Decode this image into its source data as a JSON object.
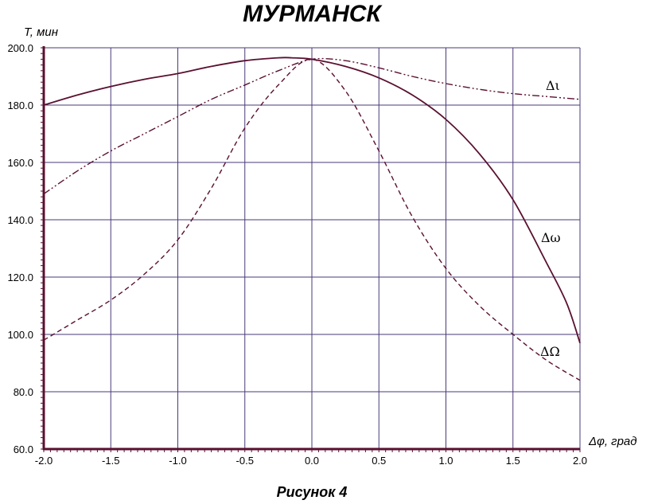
{
  "chart_data": {
    "type": "line",
    "title": "МУРМАНСК",
    "ylabel": "T, мин",
    "xlabel": "Δφ, град",
    "caption": "Рисунок  4",
    "xlim": [
      -2.0,
      2.0
    ],
    "ylim": [
      60.0,
      200.0
    ],
    "x_ticks": [
      "-2.0",
      "-1.5",
      "-1.0",
      "-0.5",
      "0.0",
      "0.5",
      "1.0",
      "1.5",
      "2.0"
    ],
    "y_ticks": [
      "60.0",
      "80.0",
      "100.0",
      "120.0",
      "140.0",
      "160.0",
      "180.0",
      "200.0"
    ],
    "grid": true,
    "colors": {
      "line": "#5a1030",
      "grid": "#4a3a78",
      "axis": "#5a1030"
    },
    "series": [
      {
        "name": "Δι",
        "style": "dash-dot-dot",
        "x": [
          -2.0,
          -1.75,
          -1.5,
          -1.25,
          -1.0,
          -0.75,
          -0.5,
          -0.25,
          0.0,
          0.25,
          0.5,
          0.75,
          1.0,
          1.25,
          1.5,
          1.75,
          2.0
        ],
        "y": [
          149,
          157,
          164,
          170,
          176,
          182,
          187,
          192,
          196,
          195.5,
          193,
          190,
          187.5,
          185.5,
          184,
          183,
          182
        ]
      },
      {
        "name": "Δω",
        "style": "solid",
        "x": [
          -2.0,
          -1.75,
          -1.5,
          -1.25,
          -1.0,
          -0.75,
          -0.5,
          -0.25,
          -0.15,
          0.0,
          0.25,
          0.5,
          0.75,
          1.0,
          1.25,
          1.5,
          1.75,
          1.9,
          2.0
        ],
        "y": [
          180,
          183.5,
          186.5,
          189,
          191,
          193.5,
          195.5,
          196.5,
          196.5,
          196,
          193.5,
          189.5,
          183.5,
          175,
          163,
          147,
          125,
          111,
          97
        ]
      },
      {
        "name": "ΔΩ",
        "style": "dashed",
        "x": [
          -2.0,
          -1.75,
          -1.5,
          -1.25,
          -1.0,
          -0.75,
          -0.5,
          -0.25,
          0.0,
          0.25,
          0.5,
          0.75,
          1.0,
          1.25,
          1.5,
          1.75,
          2.0
        ],
        "y": [
          98,
          105,
          112,
          121,
          133,
          151,
          172,
          187,
          196,
          185,
          164,
          141,
          123,
          110,
          100,
          91,
          84
        ]
      }
    ]
  }
}
